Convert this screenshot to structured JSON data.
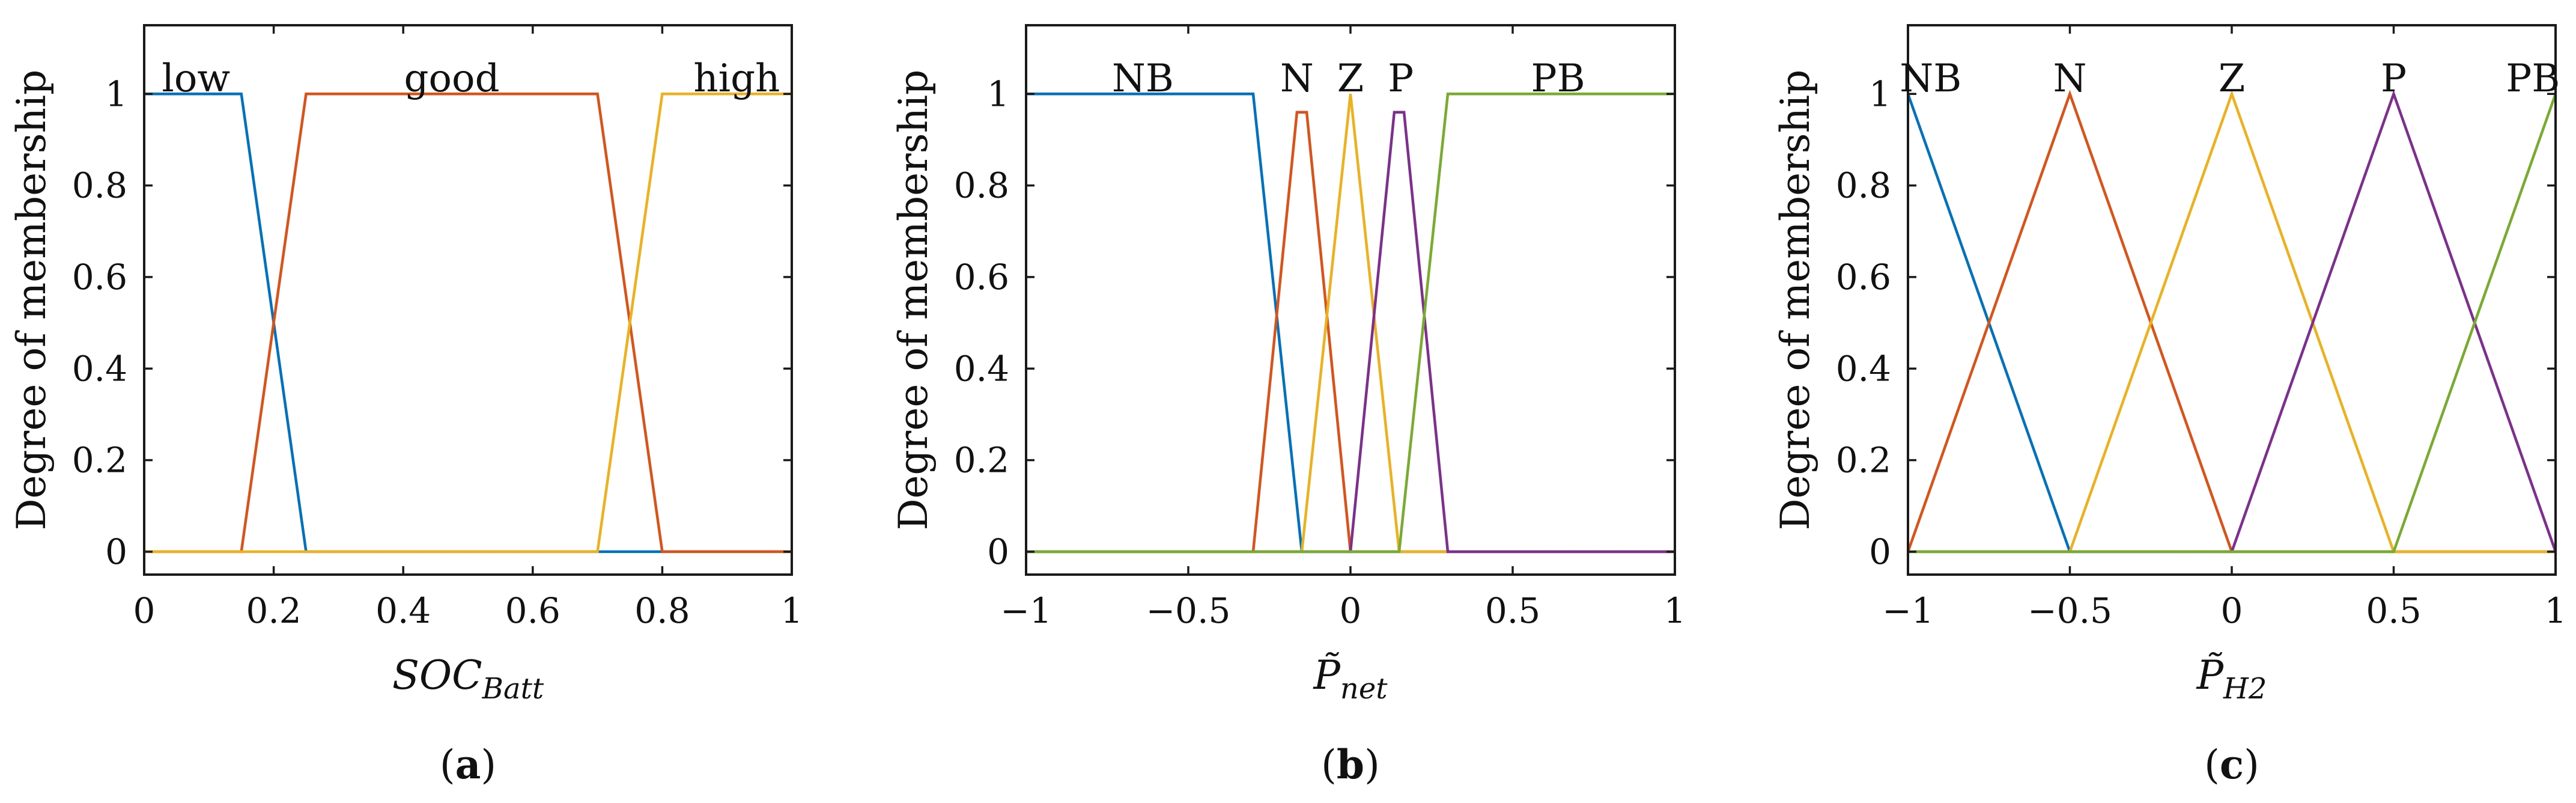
{
  "ylabel": "Degree of membership",
  "colors": [
    "#0072BD",
    "#D95319",
    "#EDB120",
    "#7E2F8E",
    "#77AC30"
  ],
  "chart_data": [
    {
      "type": "line",
      "caption": "a",
      "xlabel": {
        "base": "SOC",
        "sub": "Batt"
      },
      "xlim": [
        0,
        1
      ],
      "ylim": [
        -0.05,
        1.15
      ],
      "xticks": [
        0,
        0.2,
        0.4,
        0.6,
        0.8,
        1
      ],
      "xtick_labels": [
        "0",
        "0.2",
        "0.4",
        "0.6",
        "0.8",
        "1"
      ],
      "yticks": [
        0,
        0.2,
        0.4,
        0.6,
        0.8,
        1
      ],
      "ytick_labels": [
        "0",
        "0.2",
        "0.4",
        "0.6",
        "0.8",
        "1"
      ],
      "series": [
        {
          "name": "low",
          "label_x": 0.08,
          "x": [
            0,
            0.15,
            0.25,
            1
          ],
          "y": [
            1,
            1,
            0,
            0
          ]
        },
        {
          "name": "good",
          "label_x": 0.475,
          "x": [
            0,
            0.15,
            0.25,
            0.7,
            0.8,
            1
          ],
          "y": [
            0,
            0,
            1,
            1,
            0,
            0
          ]
        },
        {
          "name": "high",
          "label_x": 0.915,
          "x": [
            0,
            0.7,
            0.8,
            1
          ],
          "y": [
            0,
            0,
            1,
            1
          ]
        }
      ]
    },
    {
      "type": "line",
      "caption": "b",
      "xlabel": {
        "base": "P̃",
        "sub": "net"
      },
      "xlim": [
        -1,
        1
      ],
      "ylim": [
        -0.05,
        1.15
      ],
      "xticks": [
        -1,
        -0.5,
        0,
        0.5,
        1
      ],
      "xtick_labels": [
        "−1",
        "−0.5",
        "0",
        "0.5",
        "1"
      ],
      "yticks": [
        0,
        0.2,
        0.4,
        0.6,
        0.8,
        1
      ],
      "ytick_labels": [
        "0",
        "0.2",
        "0.4",
        "0.6",
        "0.8",
        "1"
      ],
      "series": [
        {
          "name": "NB",
          "label_x": -0.64,
          "x": [
            -1,
            -0.3,
            -0.15,
            1
          ],
          "y": [
            1,
            1,
            0,
            0
          ]
        },
        {
          "name": "N",
          "label_x": -0.165,
          "x": [
            -1,
            -0.3,
            -0.165,
            -0.135,
            0,
            1
          ],
          "y": [
            0,
            0,
            0.96,
            0.96,
            0,
            0
          ]
        },
        {
          "name": "Z",
          "label_x": 0.0,
          "x": [
            -1,
            -0.15,
            0,
            0.15,
            1
          ],
          "y": [
            0,
            0,
            1,
            0,
            0
          ]
        },
        {
          "name": "P",
          "label_x": 0.155,
          "x": [
            -1,
            0,
            0.135,
            0.165,
            0.3,
            1
          ],
          "y": [
            0,
            0,
            0.96,
            0.96,
            0,
            0
          ]
        },
        {
          "name": "PB",
          "label_x": 0.64,
          "x": [
            -1,
            0.15,
            0.3,
            1
          ],
          "y": [
            0,
            0,
            1,
            1
          ]
        }
      ]
    },
    {
      "type": "line",
      "caption": "c",
      "xlabel": {
        "base": "P̃",
        "sub": "H2"
      },
      "xlim": [
        -1,
        1
      ],
      "ylim": [
        -0.05,
        1.15
      ],
      "xticks": [
        -1,
        -0.5,
        0,
        0.5,
        1
      ],
      "xtick_labels": [
        "−1",
        "−0.5",
        "0",
        "0.5",
        "1"
      ],
      "yticks": [
        0,
        0.2,
        0.4,
        0.6,
        0.8,
        1
      ],
      "ytick_labels": [
        "0",
        "0.2",
        "0.4",
        "0.6",
        "0.8",
        "1"
      ],
      "series": [
        {
          "name": "NB",
          "label_x": -0.93,
          "x": [
            -1,
            -0.5,
            1
          ],
          "y": [
            1,
            0,
            0
          ]
        },
        {
          "name": "N",
          "label_x": -0.5,
          "x": [
            -1,
            -0.5,
            0,
            1
          ],
          "y": [
            0,
            1,
            0,
            0
          ]
        },
        {
          "name": "Z",
          "label_x": 0.0,
          "x": [
            -1,
            -0.5,
            0,
            0.5,
            1
          ],
          "y": [
            0,
            0,
            1,
            0,
            0
          ]
        },
        {
          "name": "P",
          "label_x": 0.5,
          "x": [
            -1,
            0,
            0.5,
            1
          ],
          "y": [
            0,
            0,
            1,
            0
          ]
        },
        {
          "name": "PB",
          "label_x": 0.93,
          "x": [
            -1,
            0.5,
            1
          ],
          "y": [
            0,
            0,
            1
          ]
        }
      ]
    }
  ]
}
